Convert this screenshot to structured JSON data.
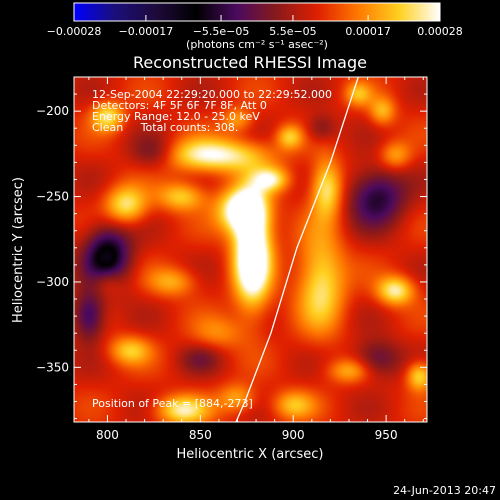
{
  "chart_data": {
    "type": "heatmap",
    "title": "Reconstructed RHESSI Image",
    "xlabel": "Heliocentric X (arcsec)",
    "ylabel": "Heliocentric Y (arcsec)",
    "xlim": [
      782,
      972
    ],
    "ylim": [
      -382,
      -180
    ],
    "xticks": [
      800,
      850,
      900,
      950
    ],
    "yticks": [
      -350,
      -300,
      -250,
      -200
    ],
    "xticklabels": [
      "800",
      "850",
      "900",
      "950"
    ],
    "yticklabels": [
      "−350",
      "−300",
      "−250",
      "−200"
    ],
    "colorbar": {
      "range": [
        -0.00028,
        0.00028
      ],
      "ticks": [
        -0.00028,
        -0.00017,
        -5.5e-05,
        5.5e-05,
        0.00017,
        0.00028
      ],
      "ticklabels": [
        "−0.00028",
        "−0.00017",
        "−5.5e−05",
        "5.5e−05",
        "0.00017",
        "0.00028"
      ],
      "units": "(photons cm⁻² s⁻¹ asec⁻²)",
      "colors": [
        "#0000ff",
        "#1a0f7a",
        "#1e0a3c",
        "#000000",
        "#4a0a5e",
        "#8a1a1a",
        "#e02000",
        "#ff7a00",
        "#ffd020",
        "#ffffff"
      ]
    },
    "info_lines": [
      "12-Sep-2004 22:29:20.000 to 22:29:52.000",
      "Detectors: 4F 5F 6F 7F 8F, Att 0",
      "Energy Range: 12.0 - 25.0 keV",
      "Clean     Total counts: 308."
    ],
    "peak_label": "Position of Peak = [884,-273]",
    "grid": false,
    "limb": [
      [
        935,
        -180
      ],
      [
        920,
        -230
      ],
      [
        902,
        -280
      ],
      [
        888,
        -330
      ],
      [
        874,
        -370
      ],
      [
        868,
        -385
      ]
    ],
    "blobs": [
      {
        "x": 878,
        "y": -283,
        "sx": 7,
        "sy": 22,
        "v": 0.0003
      },
      {
        "x": 872,
        "y": -258,
        "sx": 9,
        "sy": 9,
        "v": 0.00022
      },
      {
        "x": 857,
        "y": -226,
        "sx": 20,
        "sy": 7,
        "v": 0.00019
      },
      {
        "x": 888,
        "y": -240,
        "sx": 7,
        "sy": 5,
        "v": 0.00015
      },
      {
        "x": 918,
        "y": -245,
        "sx": 6,
        "sy": 12,
        "v": 0.00017
      },
      {
        "x": 898,
        "y": -215,
        "sx": 5,
        "sy": 5,
        "v": 0.00012
      },
      {
        "x": 915,
        "y": -300,
        "sx": 9,
        "sy": 20,
        "v": 0.00016
      },
      {
        "x": 955,
        "y": -305,
        "sx": 7,
        "sy": 6,
        "v": 0.00017
      },
      {
        "x": 968,
        "y": -355,
        "sx": 5,
        "sy": 6,
        "v": 0.00015
      },
      {
        "x": 955,
        "y": -226,
        "sx": 6,
        "sy": 6,
        "v": 0.0001
      },
      {
        "x": 948,
        "y": -200,
        "sx": 5,
        "sy": 6,
        "v": 0.00011
      },
      {
        "x": 935,
        "y": -190,
        "sx": 5,
        "sy": 5,
        "v": 0.0001
      },
      {
        "x": 810,
        "y": -255,
        "sx": 8,
        "sy": 8,
        "v": 0.00016
      },
      {
        "x": 840,
        "y": -250,
        "sx": 9,
        "sy": 6,
        "v": 0.00013
      },
      {
        "x": 800,
        "y": -203,
        "sx": 6,
        "sy": 6,
        "v": 0.00015
      },
      {
        "x": 870,
        "y": -205,
        "sx": 6,
        "sy": 5,
        "v": 9e-05
      },
      {
        "x": 835,
        "y": -300,
        "sx": 9,
        "sy": 6,
        "v": 0.0001
      },
      {
        "x": 800,
        "y": -300,
        "sx": 6,
        "sy": 6,
        "v": 8e-05
      },
      {
        "x": 812,
        "y": -340,
        "sx": 8,
        "sy": 6,
        "v": 0.00012
      },
      {
        "x": 840,
        "y": -375,
        "sx": 10,
        "sy": 6,
        "v": 0.00016
      },
      {
        "x": 870,
        "y": -368,
        "sx": 7,
        "sy": 6,
        "v": 0.0001
      },
      {
        "x": 900,
        "y": -372,
        "sx": 8,
        "sy": 6,
        "v": 0.00011
      },
      {
        "x": 860,
        "y": -330,
        "sx": 10,
        "sy": 7,
        "v": 7e-05
      },
      {
        "x": 930,
        "y": -352,
        "sx": 8,
        "sy": 5,
        "v": 0.0001
      },
      {
        "x": 800,
        "y": -285,
        "sx": 9,
        "sy": 13,
        "v": -0.0002
      },
      {
        "x": 790,
        "y": -320,
        "sx": 6,
        "sy": 10,
        "v": -0.00015
      },
      {
        "x": 945,
        "y": -250,
        "sx": 11,
        "sy": 12,
        "v": -0.00016
      },
      {
        "x": 825,
        "y": -225,
        "sx": 9,
        "sy": 7,
        "v": -0.0001
      },
      {
        "x": 915,
        "y": -210,
        "sx": 6,
        "sy": 6,
        "v": -8e-05
      },
      {
        "x": 945,
        "y": -345,
        "sx": 9,
        "sy": 8,
        "v": -0.00011
      },
      {
        "x": 850,
        "y": -345,
        "sx": 8,
        "sy": 6,
        "v": -6e-05
      }
    ]
  },
  "footer": {
    "date": "24-Jun-2013 20:47"
  }
}
